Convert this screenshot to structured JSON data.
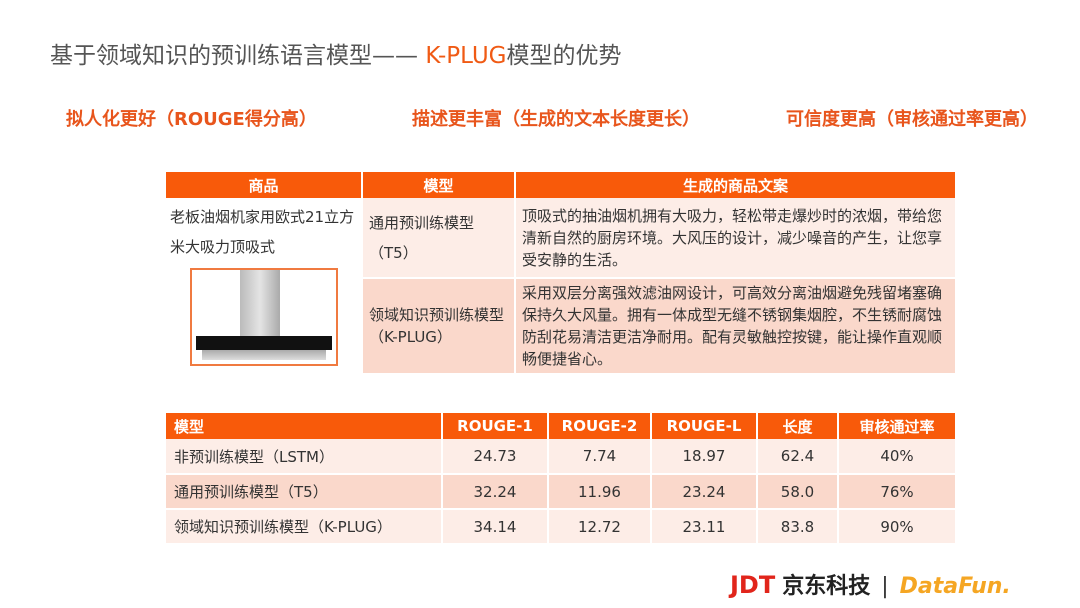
{
  "title": {
    "main": "基于领域知识的预训练语言模型—— ",
    "highlight": "K-PLUG",
    "suffix": "模型的优势"
  },
  "advantages": [
    "拟人化更好（ROUGE得分高）",
    "描述更丰富（生成的文本长度更长）",
    "可信度更高（审核通过率更高）"
  ],
  "product_table": {
    "headers": [
      "商品",
      "模型",
      "生成的商品文案"
    ],
    "product_name": "老板油烟机家用欧式21立方米大吸力顶吸式",
    "rows": [
      {
        "model": "通用预训练模型（T5）",
        "text": "顶吸式的抽油烟机拥有大吸力，轻松带走爆炒时的浓烟，带给您清新自然的厨房环境。大风压的设计，减少噪音的产生，让您享受安静的生活。"
      },
      {
        "model": "领域知识预训练模型（K-PLUG）",
        "text": "采用双层分离强效滤油网设计，可高效分离油烟避免残留堵塞确保持久大风量。拥有一体成型无缝不锈钢集烟腔，不生锈耐腐蚀防刮花易清洁更洁净耐用。配有灵敏触控按键，能让操作直观顺畅便捷省心。"
      }
    ]
  },
  "score_table": {
    "headers": [
      "模型",
      "ROUGE-1",
      "ROUGE-2",
      "ROUGE-L",
      "长度",
      "审核通过率"
    ],
    "rows": [
      [
        "非预训练模型（LSTM）",
        "24.73",
        "7.74",
        "18.97",
        "62.4",
        "40%"
      ],
      [
        "通用预训练模型（T5）",
        "32.24",
        "11.96",
        "23.24",
        "58.0",
        "76%"
      ],
      [
        "领域知识预训练模型（K-PLUG）",
        "34.14",
        "12.72",
        "23.11",
        "83.8",
        "90%"
      ]
    ]
  },
  "footer": {
    "jdt": "JDT",
    "jdt_cn": "京东科技",
    "separator": "|",
    "datafun": "DataFun."
  },
  "colors": {
    "accent": "#f85a0a",
    "row_light": "#fdede7",
    "row_dark": "#fad8cb"
  }
}
